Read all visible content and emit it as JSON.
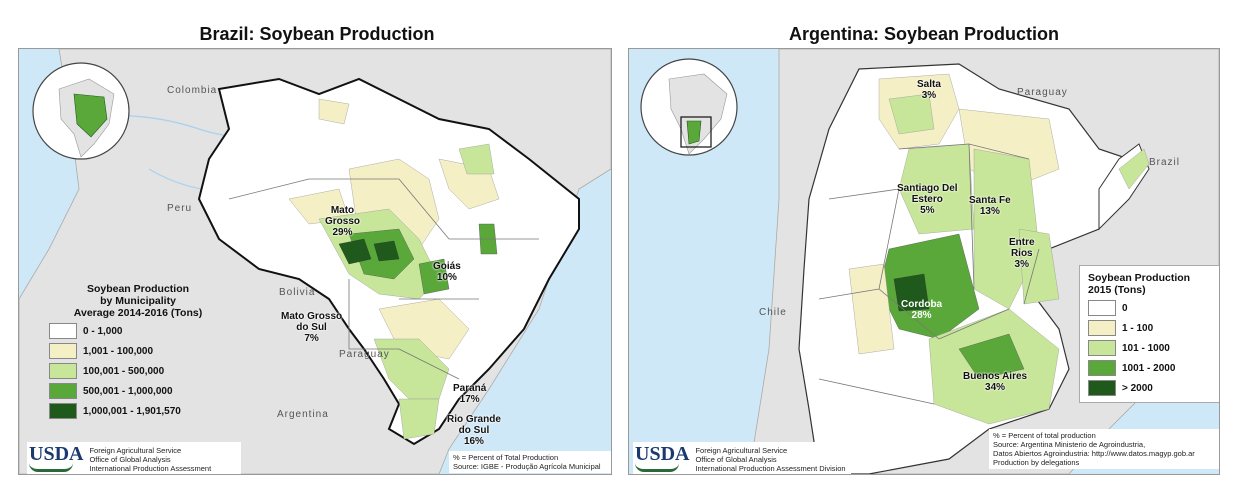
{
  "brazil": {
    "title": "Brazil: Soybean Production",
    "countries": [
      "Colombia",
      "Peru",
      "Bolivia",
      "Paraguay",
      "Argentina"
    ],
    "regions": [
      {
        "name": "Mato\nGrosso",
        "pct": "29%"
      },
      {
        "name": "Goiás",
        "pct": "10%"
      },
      {
        "name": "Mato Grosso\ndo Sul",
        "pct": "7%"
      },
      {
        "name": "Paraná",
        "pct": "17%"
      },
      {
        "name": "Rio Grande\ndo Sul",
        "pct": "16%"
      }
    ],
    "legend": {
      "title": "Soybean Production\nby Municipality\nAverage 2014-2016 (Tons)",
      "items": [
        {
          "label": "0 - 1,000",
          "color": "#ffffff"
        },
        {
          "label": "1,001 - 100,000",
          "color": "#f4efc4"
        },
        {
          "label": "100,001 - 500,000",
          "color": "#c8e69a"
        },
        {
          "label": "500,001 - 1,000,000",
          "color": "#5aa83a"
        },
        {
          "label": "1,000,001 - 1,901,570",
          "color": "#1f5a1c"
        }
      ]
    },
    "footer": {
      "logo": "USDA",
      "agency": [
        "Foreign Agricultural Service",
        "Office of Global Analysis",
        "International Production Assessment Division"
      ],
      "note": "% = Percent of Total Production",
      "source": "Source: IGBE - Produção Agrícola Municipal"
    }
  },
  "argentina": {
    "title": "Argentina: Soybean Production",
    "countries": [
      "Paraguay",
      "Brazil",
      "Chile"
    ],
    "regions": [
      {
        "name": "Salta",
        "pct": "3%"
      },
      {
        "name": "Santiago Del\nEstero",
        "pct": "5%"
      },
      {
        "name": "Santa Fe",
        "pct": "13%"
      },
      {
        "name": "Entre\nRios",
        "pct": "3%"
      },
      {
        "name": "Cordoba",
        "pct": "28%"
      },
      {
        "name": "Buenos Aires",
        "pct": "34%"
      }
    ],
    "legend": {
      "title": "Soybean Production\n2015 (Tons)",
      "items": [
        {
          "label": "0",
          "color": "#ffffff"
        },
        {
          "label": "1 - 100",
          "color": "#f4efc4"
        },
        {
          "label": "101 - 1000",
          "color": "#c8e69a"
        },
        {
          "label": "1001 - 2000",
          "color": "#5aa83a"
        },
        {
          "label": "> 2000",
          "color": "#1f5a1c"
        }
      ]
    },
    "footer": {
      "logo": "USDA",
      "agency": [
        "Foreign Agricultural Service",
        "Office of Global Analysis",
        "International Production Assessment Division"
      ],
      "note": "% = Percent of total production",
      "source_lines": [
        "Source: Argentina Ministerio de Agroindustria,",
        "Datos Abiertos Agroindustria: http://www.datos.magyp.gob.ar",
        "Production by delegations"
      ]
    }
  },
  "colors": {
    "ocean": "#cfe8f7",
    "land": "#e3e3e3",
    "border": "#888888",
    "outline": "#111111"
  }
}
